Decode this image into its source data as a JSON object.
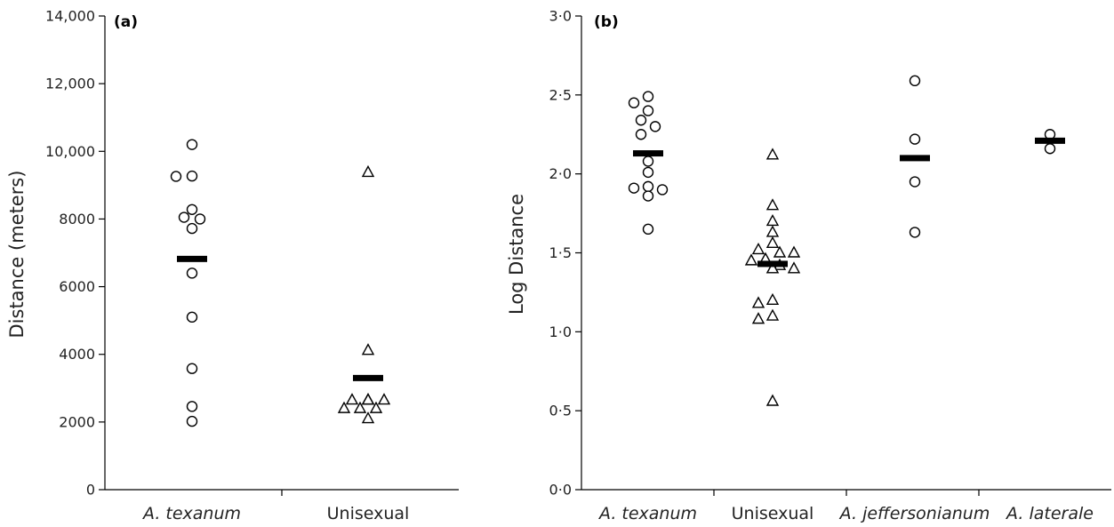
{
  "chart_data": [
    {
      "type": "scatter",
      "panel_label": "(a)",
      "xlabel": "",
      "ylabel": "Distance (meters)",
      "ylim": [
        0,
        14000
      ],
      "yticks": [
        0,
        2000,
        4000,
        6000,
        8000,
        10000,
        12000,
        14000
      ],
      "ytick_labels": [
        "0",
        "2000",
        "4000",
        "6000",
        "8000",
        "10,000",
        "12,000",
        "14,000"
      ],
      "categories": [
        "A. texanum",
        "Unisexual"
      ],
      "italic_categories": [
        true,
        false
      ],
      "series": [
        {
          "category": "A. texanum",
          "marker": "circle",
          "values": [
            10200,
            9270,
            9260,
            8280,
            8050,
            8000,
            7720,
            6400,
            5100,
            3580,
            2460,
            2020
          ],
          "mean": 6820
        },
        {
          "category": "Unisexual",
          "marker": "triangle",
          "values": [
            9380,
            4120,
            2650,
            2650,
            2650,
            2650,
            2650,
            2400,
            2400,
            2400,
            2100
          ],
          "mean": 3300
        }
      ]
    },
    {
      "type": "scatter",
      "panel_label": "(b)",
      "xlabel": "",
      "ylabel": "Log Distance",
      "ylim": [
        0,
        3.0
      ],
      "yticks": [
        0,
        0.5,
        1.0,
        1.5,
        2.0,
        2.5,
        3.0
      ],
      "ytick_labels": [
        "0·0",
        "0·5",
        "1·0",
        "1·5",
        "2·0",
        "2·5",
        "3·0"
      ],
      "categories": [
        "A. texanum",
        "Unisexual",
        "A. jeffersonianum",
        "A. laterale"
      ],
      "italic_categories": [
        true,
        false,
        true,
        true
      ],
      "series": [
        {
          "category": "A. texanum",
          "marker": "circle",
          "values": [
            2.49,
            2.45,
            2.4,
            2.34,
            2.3,
            2.25,
            2.08,
            2.01,
            1.92,
            1.91,
            1.9,
            1.86,
            1.65
          ],
          "mean": 2.13
        },
        {
          "category": "Unisexual",
          "marker": "triangle",
          "values": [
            2.12,
            1.8,
            1.7,
            1.63,
            1.56,
            1.52,
            1.5,
            1.5,
            1.46,
            1.45,
            1.42,
            1.4,
            1.4,
            1.4,
            1.2,
            1.18,
            1.1,
            1.08,
            0.56
          ],
          "mean": 1.43
        },
        {
          "category": "A. jeffersonianum",
          "marker": "circle",
          "values": [
            2.59,
            2.22,
            1.95,
            1.63
          ],
          "mean": 2.1
        },
        {
          "category": "A. laterale",
          "marker": "circle",
          "values": [
            2.25,
            2.16
          ],
          "mean": 2.21
        }
      ]
    }
  ]
}
